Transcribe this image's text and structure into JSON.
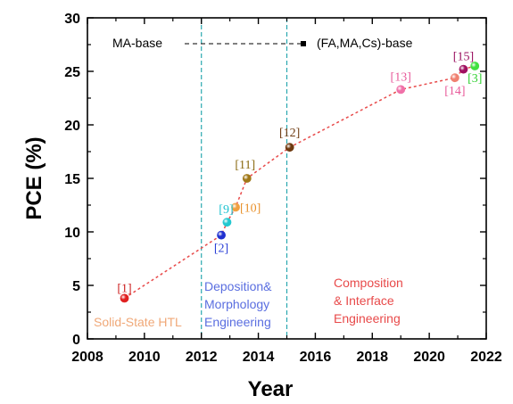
{
  "chart_data": {
    "type": "scatter",
    "xlabel": "Year",
    "ylabel": "PCE (%)",
    "xlim": [
      2008,
      2022
    ],
    "ylim": [
      0,
      30
    ],
    "xticks": [
      "2008",
      "2010",
      "2012",
      "2014",
      "2016",
      "2018",
      "2020",
      "2022"
    ],
    "yticks": [
      "0",
      "5",
      "10",
      "15",
      "20",
      "25",
      "30"
    ],
    "x_minor_step": 1,
    "y_minor_step": 2.5,
    "trend_color": "#e84a4a",
    "points": [
      {
        "ref": "[1]",
        "x": 2009.3,
        "y": 3.8,
        "color": "#e02020",
        "label_color": "#cc2020"
      },
      {
        "ref": "[2]",
        "x": 2012.7,
        "y": 9.7,
        "color": "#2030d0",
        "label_color": "#2a3fd6"
      },
      {
        "ref": "[9]",
        "x": 2012.9,
        "y": 10.9,
        "color": "#22c8d0",
        "label_color": "#1ec2d0"
      },
      {
        "ref": "[10]",
        "x": 2013.2,
        "y": 12.3,
        "color": "#f0a040",
        "label_color": "#e8902a"
      },
      {
        "ref": "[11]",
        "x": 2013.6,
        "y": 15.0,
        "color": "#a07818",
        "label_color": "#8a6a10"
      },
      {
        "ref": "[12]",
        "x": 2015.1,
        "y": 17.9,
        "color": "#6e3a10",
        "label_color": "#6e3a10"
      },
      {
        "ref": "[13]",
        "x": 2019.0,
        "y": 23.3,
        "color": "#f070a8",
        "label_color": "#e85a9a"
      },
      {
        "ref": "[14]",
        "x": 2020.9,
        "y": 24.4,
        "color": "#f08070",
        "label_color": "#e85a9a"
      },
      {
        "ref": "[15]",
        "x": 2021.2,
        "y": 25.2,
        "color": "#a01060",
        "label_color": "#9a1060"
      },
      {
        "ref": "[3]",
        "x": 2021.6,
        "y": 25.5,
        "color": "#40e040",
        "label_color": "#30d030"
      }
    ],
    "dividers": [
      2012,
      2015
    ],
    "divider_color": "#2aa8b0",
    "band_labels": {
      "left": "MA-base",
      "right": "(FA,MA,Cs)-base"
    },
    "regions": [
      {
        "lines": [
          "Solid-State HTL"
        ],
        "color": "#f0a878"
      },
      {
        "lines": [
          "Deposition&",
          "Morphology",
          "Engineering"
        ],
        "color": "#5a6ee0"
      },
      {
        "lines": [
          "Composition",
          "& Interface",
          "Engineering"
        ],
        "color": "#e84a4a"
      }
    ]
  }
}
